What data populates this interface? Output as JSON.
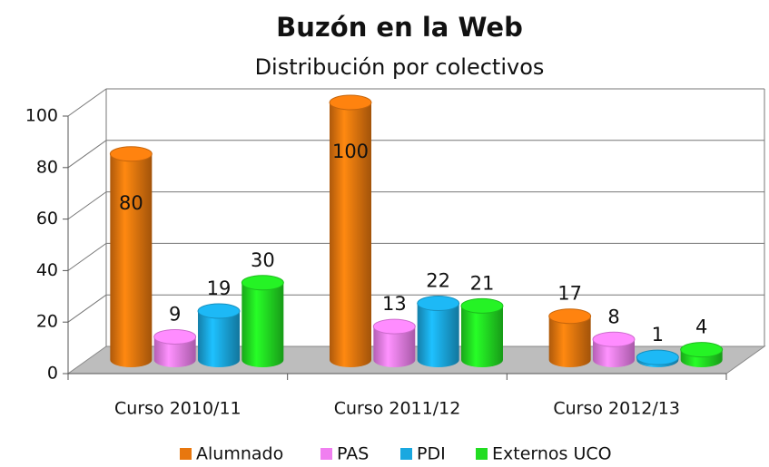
{
  "chart_data": {
    "type": "bar3d",
    "title": "Buzón en la Web",
    "subtitle": "Distribución por colectivos",
    "categories": [
      "Curso 2010/11",
      "Curso 2011/12",
      "Curso 2012/13"
    ],
    "series": [
      {
        "name": "Alumnado",
        "color": "#e8770e",
        "values": [
          80,
          100,
          17
        ]
      },
      {
        "name": "PAS",
        "color": "#f07ff0",
        "values": [
          9,
          13,
          8
        ]
      },
      {
        "name": "PDI",
        "color": "#1aa8e0",
        "values": [
          19,
          22,
          1
        ]
      },
      {
        "name": "Externos UCO",
        "color": "#22dd22",
        "values": [
          30,
          21,
          4
        ]
      }
    ],
    "ylim": [
      0,
      100
    ],
    "yticks": [
      0,
      20,
      40,
      60,
      80,
      100
    ],
    "grid": true,
    "legend": "bottom"
  }
}
